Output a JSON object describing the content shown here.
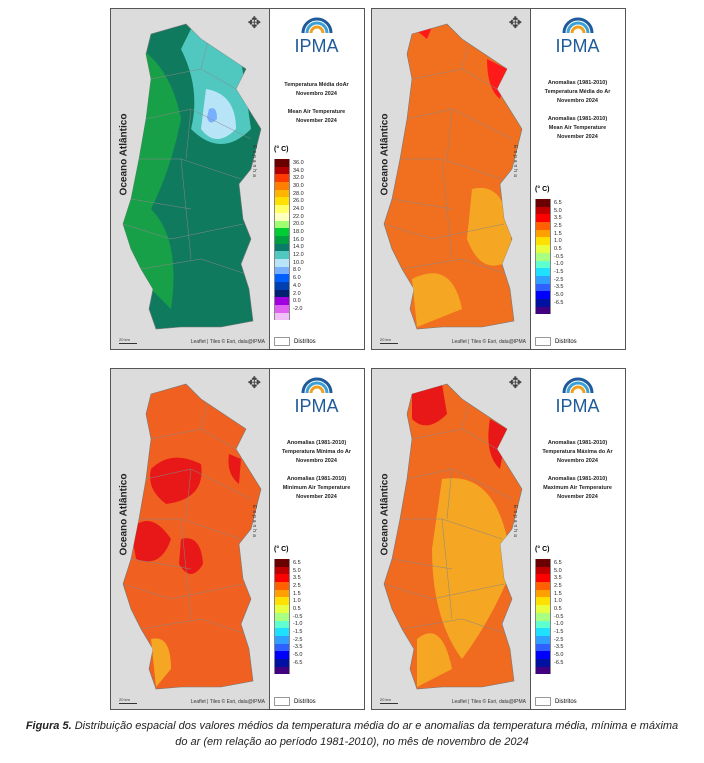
{
  "common": {
    "ocean_label": "Oceano Atlântico",
    "country_label": "Espanha",
    "logo_text": "IPMA",
    "attribution": "Leaflet | Tiles © Esri, data@IPMA",
    "scale_label": "20 km",
    "unit": "(° C)",
    "districts_label": "Distritos"
  },
  "legends": {
    "absolute": {
      "labels": [
        "36.0",
        "34.0",
        "32.0",
        "30.0",
        "28.0",
        "26.0",
        "24.0",
        "22.0",
        "20.0",
        "18.0",
        "16.0",
        "14.0",
        "12.0",
        "10.0",
        "8.0",
        "6.0",
        "4.0",
        "2.0",
        "0.0",
        "-2.0",
        ""
      ],
      "colors": [
        "#6b0000",
        "#b00000",
        "#ff3a00",
        "#ff8000",
        "#ffb400",
        "#ffe000",
        "#ffff66",
        "#ffffc0",
        "#a0ff70",
        "#00cc33",
        "#00a040",
        "#0a7a6a",
        "#50c8c0",
        "#b8e4f8",
        "#78b0ff",
        "#0060ff",
        "#0040b0",
        "#002070",
        "#a000e0",
        "#e060f0",
        "#f0c0f8"
      ]
    },
    "anomaly": {
      "labels": [
        "6.5",
        "5.0",
        "3.5",
        "2.5",
        "1.5",
        "1.0",
        "0.5",
        "-0.5",
        "-1.0",
        "-1.5",
        "-2.5",
        "-3.5",
        "-5.0",
        "-6.5",
        ""
      ],
      "colors": [
        "#6b0000",
        "#c00000",
        "#ff0000",
        "#ff6000",
        "#ffa000",
        "#ffe000",
        "#e8ff40",
        "#a8ff80",
        "#60ffd0",
        "#20e0ff",
        "#30a0ff",
        "#3060ff",
        "#0000ff",
        "#0010a0",
        "#400080"
      ]
    }
  },
  "panels": [
    {
      "title_lines": [
        "Temperatura Média doAr",
        "Novembro 2024",
        "",
        "Mean Air Temperature",
        "November 2024"
      ],
      "legend": "absolute",
      "theme": "mean"
    },
    {
      "title_lines": [
        "Anomalias (1981-2010)",
        "Temperatura Média do Ar",
        "Novembro 2024",
        "",
        "Anomalias (1981-2010)",
        "Mean Air Temperature",
        "November 2024"
      ],
      "legend": "anomaly",
      "theme": "anom_mean"
    },
    {
      "title_lines": [
        "Anomalias (1981-2010)",
        "Temperatura Mínima do Ar",
        "Novembro 2024",
        "",
        "Anomalias (1981-2010)",
        "Minimum Air Temperature",
        "November 2024"
      ],
      "legend": "anomaly",
      "theme": "anom_min"
    },
    {
      "title_lines": [
        "Anomalias (1981-2010)",
        "Temperatura Máxima do Ar",
        "Novembro 2024",
        "",
        "Anomalias (1981-2010)",
        "Maximum Air Temperature",
        "November 2024"
      ],
      "legend": "anomaly",
      "theme": "anom_max"
    }
  ],
  "caption": {
    "label": "Figura 5.",
    "text": "Distribuição espacial dos valores médios da temperatura média do ar e anomalias da temperatura média, mínima e máxima do ar (em relação ao período 1981-2010), no mês de novembro de 2024"
  }
}
